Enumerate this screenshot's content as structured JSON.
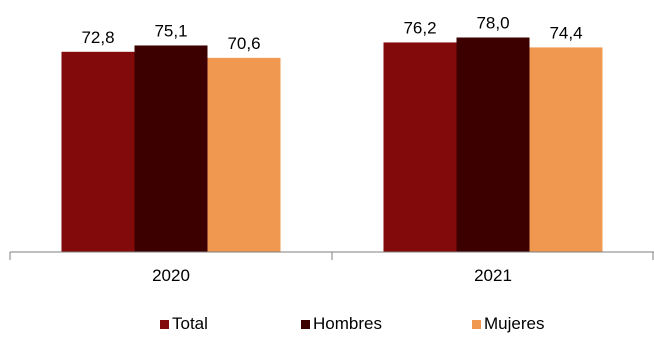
{
  "chart_data": {
    "type": "bar",
    "categories": [
      "2020",
      "2021"
    ],
    "series": [
      {
        "name": "Total",
        "values": [
          72.8,
          76.2
        ],
        "labels": [
          "72,8",
          "76,2"
        ],
        "color": "#820a0a"
      },
      {
        "name": "Hombres",
        "values": [
          75.1,
          78.0
        ],
        "labels": [
          "75,1",
          "78,0"
        ],
        "color": "#3d0000"
      },
      {
        "name": "Mujeres",
        "values": [
          70.6,
          74.4
        ],
        "labels": [
          "70,6",
          "74,4"
        ],
        "color": "#f0984f"
      }
    ],
    "title": "",
    "xlabel": "",
    "ylabel": "",
    "grid": false,
    "legend_position": "bottom",
    "ylim": [
      0,
      87.5
    ]
  }
}
